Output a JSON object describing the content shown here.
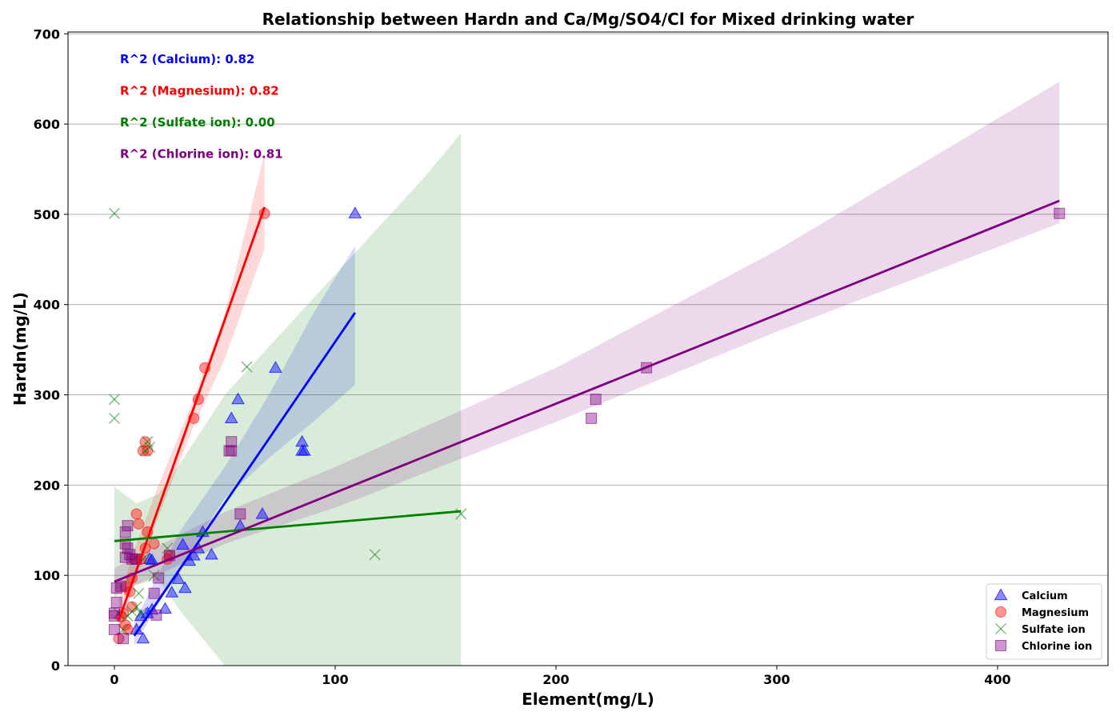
{
  "chart_data": {
    "type": "scatter",
    "title": "Relationship between Hardn and Ca/Mg/SO4/Cl for Mixed drinking water",
    "xlabel": "Element(mg/L)",
    "ylabel": "Hardn(mg/L)",
    "xlim": [
      -21,
      450
    ],
    "ylim": [
      0,
      702
    ],
    "xticks": [
      0,
      100,
      200,
      300,
      400
    ],
    "yticks": [
      0,
      100,
      200,
      300,
      400,
      500,
      600,
      700
    ],
    "grid": "y",
    "legend_position": "bottom-right",
    "series": [
      {
        "name": "Calcium",
        "marker": "triangle",
        "color": "#0000ff",
        "r2_label": "R^2 (Calcium): 0.82",
        "points": [
          [
            10,
            40
          ],
          [
            12,
            55
          ],
          [
            13,
            30
          ],
          [
            15,
            58
          ],
          [
            17,
            62
          ],
          [
            16,
            118
          ],
          [
            17,
            117
          ],
          [
            23,
            63
          ],
          [
            26,
            81
          ],
          [
            29,
            96
          ],
          [
            31,
            134
          ],
          [
            32,
            86
          ],
          [
            34,
            116
          ],
          [
            36,
            122
          ],
          [
            38,
            130
          ],
          [
            40,
            148
          ],
          [
            44,
            123
          ],
          [
            53,
            274
          ],
          [
            56,
            295
          ],
          [
            57,
            155
          ],
          [
            67,
            168
          ],
          [
            73,
            330
          ],
          [
            85,
            248
          ],
          [
            85,
            238
          ],
          [
            86,
            238
          ],
          [
            109,
            501
          ]
        ],
        "fit": {
          "x": [
            9,
            109
          ],
          "y": [
            33,
            391
          ]
        },
        "band": {
          "x": [
            9,
            30,
            50,
            70,
            90,
            109
          ],
          "upper": [
            48,
            150,
            220,
            300,
            390,
            465
          ],
          "lower": [
            22,
            110,
            185,
            230,
            270,
            311
          ]
        }
      },
      {
        "name": "Magnesium",
        "marker": "circle",
        "color": "#ff0000",
        "r2_label": "R^2 (Magnesium): 0.82",
        "points": [
          [
            2,
            30
          ],
          [
            3,
            54
          ],
          [
            4,
            58
          ],
          [
            5,
            45
          ],
          [
            5,
            87
          ],
          [
            6,
            40
          ],
          [
            7,
            82
          ],
          [
            8,
            65
          ],
          [
            8,
            97
          ],
          [
            9,
            118
          ],
          [
            10,
            168
          ],
          [
            11,
            157
          ],
          [
            12,
            118
          ],
          [
            13,
            238
          ],
          [
            14,
            248
          ],
          [
            14,
            130
          ],
          [
            15,
            238
          ],
          [
            15,
            148
          ],
          [
            18,
            135
          ],
          [
            24,
            118
          ],
          [
            25,
            122
          ],
          [
            36,
            274
          ],
          [
            38,
            295
          ],
          [
            41,
            330
          ],
          [
            68,
            501
          ]
        ],
        "fit": {
          "x": [
            2,
            68
          ],
          "y": [
            50,
            508
          ]
        },
        "band": {
          "x": [
            2,
            10,
            20,
            35,
            50,
            68
          ],
          "upper": [
            75,
            135,
            200,
            290,
            390,
            567
          ],
          "lower": [
            32,
            100,
            165,
            260,
            340,
            462
          ]
        }
      },
      {
        "name": "Sulfate ion",
        "marker": "x",
        "color": "#008000",
        "r2_label": "R^2 (Sulfate ion): 0.00",
        "points": [
          [
            0,
            501
          ],
          [
            0,
            295
          ],
          [
            0,
            274
          ],
          [
            2,
            58
          ],
          [
            4,
            40
          ],
          [
            6,
            55
          ],
          [
            8,
            60
          ],
          [
            10,
            65
          ],
          [
            11,
            80
          ],
          [
            12,
            58
          ],
          [
            13,
            118
          ],
          [
            14,
            238
          ],
          [
            15,
            248
          ],
          [
            16,
            242
          ],
          [
            18,
            100
          ],
          [
            24,
            130
          ],
          [
            60,
            331
          ],
          [
            118,
            123
          ],
          [
            157,
            168
          ]
        ],
        "fit": {
          "x": [
            0,
            157
          ],
          "y": [
            138,
            171
          ]
        },
        "band": {
          "x": [
            0,
            10,
            20,
            30,
            50,
            80,
            110,
            140,
            157
          ],
          "upper": [
            198,
            180,
            190,
            225,
            300,
            380,
            460,
            540,
            590
          ],
          "lower": [
            75,
            90,
            95,
            60,
            0,
            0,
            0,
            0,
            0
          ]
        }
      },
      {
        "name": "Chlorine ion",
        "marker": "square",
        "color": "#800080",
        "r2_label": "R^2 (Chlorine ion): 0.81",
        "points": [
          [
            0,
            40
          ],
          [
            0,
            55
          ],
          [
            0,
            58
          ],
          [
            1,
            70
          ],
          [
            1,
            86
          ],
          [
            3,
            88
          ],
          [
            4,
            30
          ],
          [
            5,
            120
          ],
          [
            5,
            135
          ],
          [
            5,
            148
          ],
          [
            6,
            155
          ],
          [
            6,
            130
          ],
          [
            7,
            123
          ],
          [
            8,
            118
          ],
          [
            10,
            118
          ],
          [
            18,
            80
          ],
          [
            19,
            56
          ],
          [
            20,
            97
          ],
          [
            25,
            122
          ],
          [
            52,
            238
          ],
          [
            53,
            238
          ],
          [
            53,
            248
          ],
          [
            57,
            168
          ],
          [
            216,
            274
          ],
          [
            218,
            295
          ],
          [
            241,
            330
          ],
          [
            428,
            501
          ]
        ],
        "fit": {
          "x": [
            0,
            428
          ],
          "y": [
            93,
            515
          ]
        },
        "band": {
          "x": [
            0,
            50,
            100,
            200,
            300,
            428
          ],
          "upper": [
            108,
            170,
            220,
            330,
            460,
            647
          ],
          "lower": [
            78,
            135,
            175,
            270,
            370,
            490
          ]
        }
      }
    ]
  }
}
